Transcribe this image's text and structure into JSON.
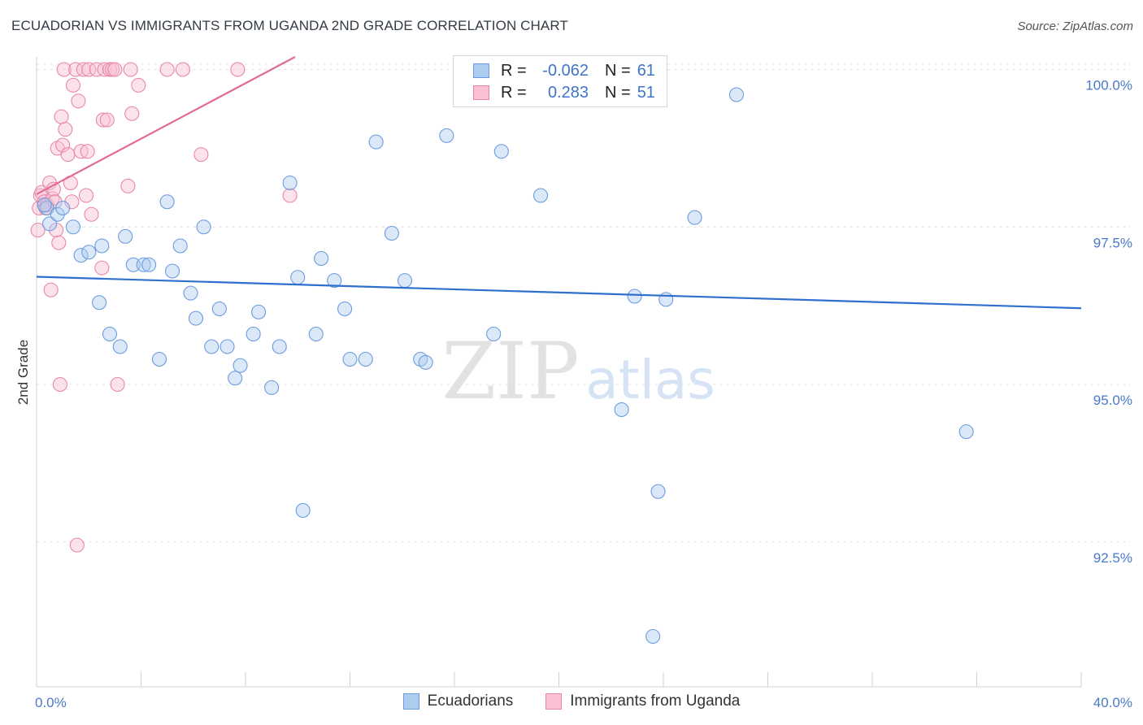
{
  "title": "ECUADORIAN VS IMMIGRANTS FROM UGANDA 2ND GRADE CORRELATION CHART",
  "source": "Source: ZipAtlas.com",
  "watermark": {
    "zip": "ZIP",
    "atlas": "atlas"
  },
  "legend": {
    "rows": [
      {
        "r_label": "R =",
        "r_value": "-0.062",
        "n_label": "N =",
        "n_value": "61",
        "color": "#aecbf0",
        "border": "#6b9be0"
      },
      {
        "r_label": "R =",
        "r_value": "0.283",
        "n_label": "N =",
        "n_value": "51",
        "color": "#f8c0d2",
        "border": "#e886a8"
      }
    ]
  },
  "bottom_legend": [
    "Ecuadorians",
    "Immigrants from Uganda"
  ],
  "chart_data": {
    "type": "scatter",
    "title": "ECUADORIAN VS IMMIGRANTS FROM UGANDA 2ND GRADE CORRELATION CHART",
    "xlabel": "",
    "ylabel": "2nd Grade",
    "xlim": [
      0,
      40
    ],
    "ylim": [
      90.2,
      100.2
    ],
    "x_tick_labels": [
      "0.0%",
      "40.0%"
    ],
    "y_ticks": [
      92.5,
      95.0,
      97.5,
      100.0
    ],
    "y_tick_labels": [
      "92.5%",
      "95.0%",
      "97.5%",
      "100.0%"
    ],
    "colors": {
      "Ecuadorians": "#6b9be0",
      "Immigrants from Uganda": "#e886a8",
      "line_blue": "#2f6fce",
      "line_pink": "#e36a97"
    },
    "series": [
      {
        "name": "Ecuadorians",
        "trend": {
          "x": [
            0,
            40
          ],
          "y": [
            96.71,
            96.21
          ]
        },
        "points": [
          [
            0.4,
            97.8
          ],
          [
            0.5,
            97.55
          ],
          [
            0.8,
            97.7
          ],
          [
            1.0,
            97.8
          ],
          [
            1.4,
            97.5
          ],
          [
            1.7,
            97.05
          ],
          [
            2.0,
            97.1
          ],
          [
            2.4,
            96.3
          ],
          [
            2.5,
            97.2
          ],
          [
            2.8,
            95.8
          ],
          [
            3.2,
            95.6
          ],
          [
            3.4,
            97.35
          ],
          [
            3.7,
            96.9
          ],
          [
            4.1,
            96.9
          ],
          [
            4.3,
            96.9
          ],
          [
            4.7,
            95.4
          ],
          [
            5.0,
            97.9
          ],
          [
            5.2,
            96.8
          ],
          [
            5.5,
            97.2
          ],
          [
            5.9,
            96.45
          ],
          [
            6.1,
            96.05
          ],
          [
            6.4,
            97.5
          ],
          [
            6.7,
            95.6
          ],
          [
            7.0,
            96.2
          ],
          [
            7.3,
            95.6
          ],
          [
            7.6,
            95.1
          ],
          [
            7.8,
            95.3
          ],
          [
            8.3,
            95.8
          ],
          [
            8.5,
            96.15
          ],
          [
            9.0,
            94.95
          ],
          [
            9.3,
            95.6
          ],
          [
            9.7,
            98.2
          ],
          [
            10.0,
            96.7
          ],
          [
            10.2,
            93.0
          ],
          [
            10.7,
            95.8
          ],
          [
            10.9,
            97.0
          ],
          [
            11.4,
            96.65
          ],
          [
            11.8,
            96.2
          ],
          [
            12.0,
            95.4
          ],
          [
            12.6,
            95.4
          ],
          [
            13.0,
            98.85
          ],
          [
            13.6,
            97.4
          ],
          [
            14.1,
            96.65
          ],
          [
            14.7,
            95.4
          ],
          [
            14.9,
            95.35
          ],
          [
            15.7,
            98.95
          ],
          [
            16.5,
            100.0
          ],
          [
            17.5,
            95.8
          ],
          [
            17.8,
            98.7
          ],
          [
            18.8,
            100.0
          ],
          [
            19.3,
            98.0
          ],
          [
            21.9,
            100.0
          ],
          [
            22.4,
            94.6
          ],
          [
            22.9,
            96.4
          ],
          [
            23.6,
            91.0
          ],
          [
            23.8,
            93.3
          ],
          [
            24.1,
            96.35
          ],
          [
            25.2,
            97.65
          ],
          [
            26.8,
            99.6
          ],
          [
            35.6,
            94.25
          ],
          [
            0.3,
            97.85
          ]
        ]
      },
      {
        "name": "Immigrants from Uganda",
        "trend": {
          "x": [
            0,
            9.9
          ],
          "y": [
            98.02,
            100.2
          ]
        },
        "points": [
          [
            0.05,
            97.45
          ],
          [
            0.1,
            97.8
          ],
          [
            0.15,
            98.0
          ],
          [
            0.2,
            98.05
          ],
          [
            0.3,
            97.9
          ],
          [
            0.35,
            97.8
          ],
          [
            0.4,
            97.85
          ],
          [
            0.5,
            98.2
          ],
          [
            0.55,
            96.5
          ],
          [
            0.6,
            97.95
          ],
          [
            0.65,
            98.1
          ],
          [
            0.7,
            97.9
          ],
          [
            0.75,
            97.45
          ],
          [
            0.8,
            98.75
          ],
          [
            0.85,
            97.25
          ],
          [
            0.9,
            95.0
          ],
          [
            0.95,
            99.25
          ],
          [
            1.0,
            98.8
          ],
          [
            1.05,
            100.0
          ],
          [
            1.1,
            99.05
          ],
          [
            1.2,
            98.65
          ],
          [
            1.3,
            98.2
          ],
          [
            1.35,
            97.9
          ],
          [
            1.4,
            99.75
          ],
          [
            1.5,
            100.0
          ],
          [
            1.55,
            92.45
          ],
          [
            1.6,
            99.5
          ],
          [
            1.7,
            98.7
          ],
          [
            1.8,
            100.0
          ],
          [
            1.9,
            98.0
          ],
          [
            1.95,
            98.7
          ],
          [
            2.0,
            100.0
          ],
          [
            2.1,
            97.7
          ],
          [
            2.3,
            100.0
          ],
          [
            2.6,
            100.0
          ],
          [
            2.5,
            96.85
          ],
          [
            2.55,
            99.2
          ],
          [
            2.7,
            99.2
          ],
          [
            2.8,
            100.0
          ],
          [
            2.9,
            100.0
          ],
          [
            3.0,
            100.0
          ],
          [
            3.1,
            95.0
          ],
          [
            3.5,
            98.15
          ],
          [
            3.6,
            100.0
          ],
          [
            3.65,
            99.3
          ],
          [
            3.9,
            99.75
          ],
          [
            5.0,
            100.0
          ],
          [
            5.6,
            100.0
          ],
          [
            6.3,
            98.65
          ],
          [
            7.7,
            100.0
          ],
          [
            9.7,
            98.0
          ]
        ]
      }
    ]
  }
}
